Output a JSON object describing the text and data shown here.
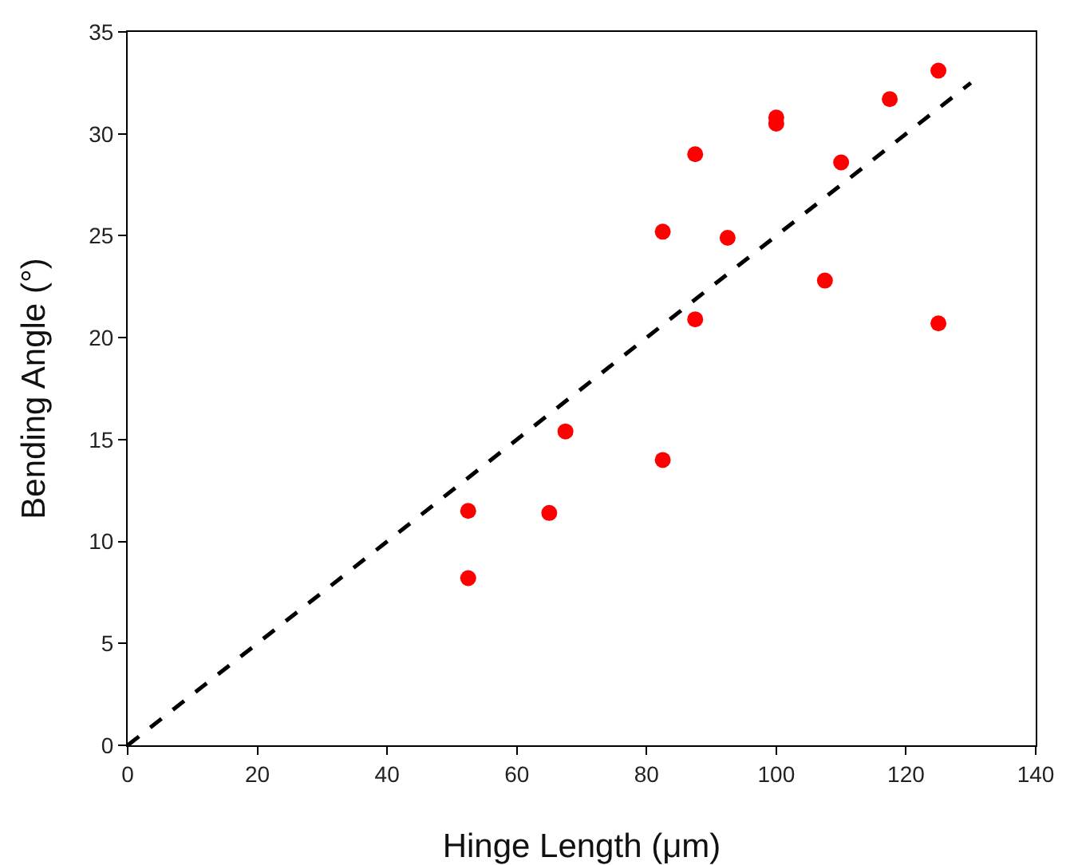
{
  "chart_data": {
    "type": "scatter",
    "xlabel": "Hinge Length (μm)",
    "ylabel": "Bending Angle (°)",
    "xlim": [
      0,
      140
    ],
    "xticks": [
      0,
      20,
      40,
      60,
      80,
      100,
      120,
      140
    ],
    "ylim": [
      0,
      35
    ],
    "yticks": [
      0,
      5,
      10,
      15,
      20,
      25,
      30,
      35
    ],
    "grid": false,
    "marker": "circle",
    "series": [
      {
        "color": "#ff0000",
        "x": [
          52.5,
          52.5,
          65,
          67.5,
          82.5,
          82.5,
          87.5,
          87.5,
          92.5,
          100,
          100,
          107.5,
          110,
          117.5,
          125,
          125
        ],
        "values": [
          8.2,
          11.5,
          11.4,
          15.4,
          14,
          25.2,
          20.9,
          29,
          24.9,
          30.8,
          30.5,
          22.8,
          28.6,
          31.7,
          33.1,
          20.7
        ]
      },
      {
        "type": "line",
        "color": "#000000",
        "line_style": "dashed",
        "marker": "none",
        "x": [
          0,
          130
        ],
        "values": [
          0,
          32.5
        ]
      }
    ]
  }
}
